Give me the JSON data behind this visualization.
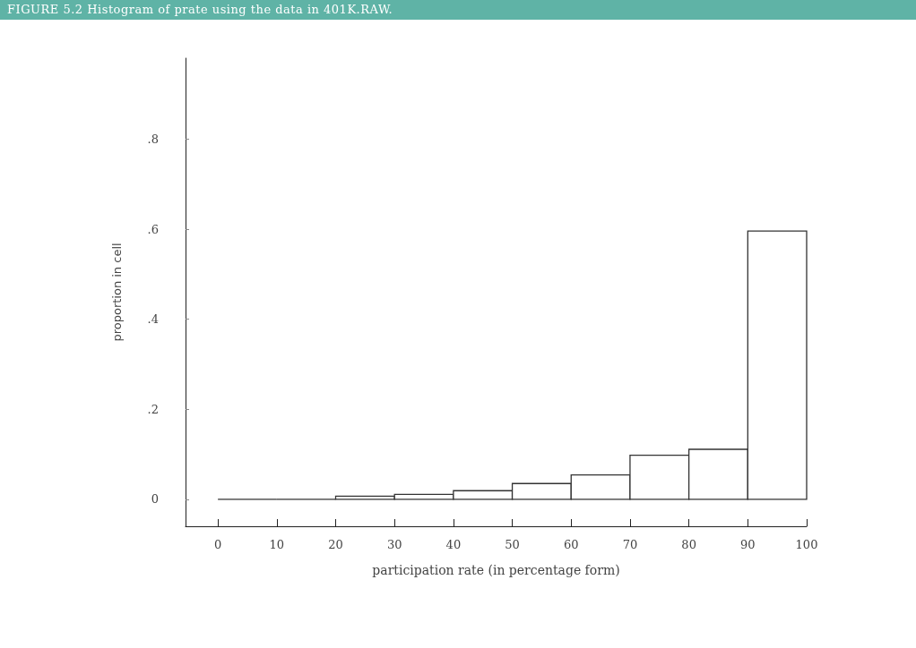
{
  "chart_data": {
    "type": "histogram",
    "title": "FIGURE 5.2  Histogram of prate using the data in 401K.RAW.",
    "xlabel": "participation rate (in percentage form)",
    "ylabel": "proportion in cell",
    "bins": [
      0,
      10,
      20,
      30,
      40,
      50,
      60,
      70,
      80,
      90,
      100
    ],
    "values": [
      0,
      0,
      0.007,
      0.011,
      0.019,
      0.035,
      0.054,
      0.098,
      0.111,
      0.596
    ],
    "color": "#333333",
    "xlim": [
      -5.5,
      100
    ],
    "xticks": [
      0,
      10,
      20,
      30,
      40,
      50,
      60,
      70,
      80,
      90,
      100
    ],
    "ylim": [
      -0.06,
      0.98
    ],
    "yticks": [
      0,
      {
        "value": 0.2,
        "label": ".2"
      },
      {
        "value": 0.4,
        "label": ".4"
      },
      {
        "value": 0.6,
        "label": ".6"
      },
      {
        "value": 0.8,
        "label": ".8"
      }
    ],
    "grid": false
  }
}
